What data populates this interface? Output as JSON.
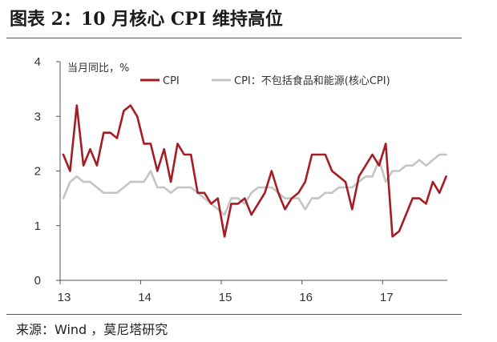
{
  "figure": {
    "title": "图表 2：10 月核心 CPI 维持高位",
    "source": "来源：Wind ，莫尼塔研究"
  },
  "chart_data": {
    "type": "line",
    "ylabel": "当月同比，%",
    "ylim": [
      0,
      4
    ],
    "yticks": [
      "0",
      "1",
      "2",
      "3",
      "4"
    ],
    "xtick_labels": [
      "13",
      "14",
      "15",
      "16",
      "17"
    ],
    "x": [
      "2013-01",
      "2013-02",
      "2013-03",
      "2013-04",
      "2013-05",
      "2013-06",
      "2013-07",
      "2013-08",
      "2013-09",
      "2013-10",
      "2013-11",
      "2013-12",
      "2014-01",
      "2014-02",
      "2014-03",
      "2014-04",
      "2014-05",
      "2014-06",
      "2014-07",
      "2014-08",
      "2014-09",
      "2014-10",
      "2014-11",
      "2014-12",
      "2015-01",
      "2015-02",
      "2015-03",
      "2015-04",
      "2015-05",
      "2015-06",
      "2015-07",
      "2015-08",
      "2015-09",
      "2015-10",
      "2015-11",
      "2015-12",
      "2016-01",
      "2016-02",
      "2016-03",
      "2016-04",
      "2016-05",
      "2016-06",
      "2016-07",
      "2016-08",
      "2016-09",
      "2016-10",
      "2016-11",
      "2016-12",
      "2017-01",
      "2017-02",
      "2017-03",
      "2017-04",
      "2017-05",
      "2017-06",
      "2017-07",
      "2017-08",
      "2017-09",
      "2017-10"
    ],
    "grid": false,
    "legend_position": "top",
    "series": [
      {
        "name": "CPI",
        "color": "#a51c24",
        "values": [
          2.3,
          2.0,
          3.2,
          2.1,
          2.4,
          2.1,
          2.7,
          2.7,
          2.6,
          3.1,
          3.2,
          3.0,
          2.5,
          2.5,
          2.0,
          2.4,
          1.8,
          2.5,
          2.3,
          2.3,
          1.6,
          1.6,
          1.4,
          1.5,
          0.8,
          1.4,
          1.4,
          1.5,
          1.2,
          1.4,
          1.6,
          2.0,
          1.6,
          1.3,
          1.5,
          1.6,
          1.8,
          2.3,
          2.3,
          2.3,
          2.0,
          1.9,
          1.8,
          1.3,
          1.9,
          2.1,
          2.3,
          2.1,
          2.5,
          0.8,
          0.9,
          1.2,
          1.5,
          1.5,
          1.4,
          1.8,
          1.6,
          1.9
        ]
      },
      {
        "name": "CPI：不包括食品和能源(核心CPI)",
        "color": "#c4c4c4",
        "values": [
          1.5,
          1.8,
          1.9,
          1.8,
          1.8,
          1.7,
          1.6,
          1.6,
          1.6,
          1.7,
          1.8,
          1.8,
          1.8,
          2.0,
          1.7,
          1.7,
          1.6,
          1.7,
          1.7,
          1.7,
          1.6,
          1.5,
          1.4,
          1.3,
          1.2,
          1.5,
          1.5,
          1.4,
          1.6,
          1.7,
          1.7,
          1.7,
          1.6,
          1.5,
          1.5,
          1.5,
          1.3,
          1.5,
          1.5,
          1.6,
          1.6,
          1.7,
          1.7,
          1.7,
          1.8,
          1.9,
          1.9,
          2.2,
          1.8,
          2.0,
          2.0,
          2.1,
          2.1,
          2.2,
          2.1,
          2.2,
          2.3,
          2.3
        ]
      }
    ]
  }
}
